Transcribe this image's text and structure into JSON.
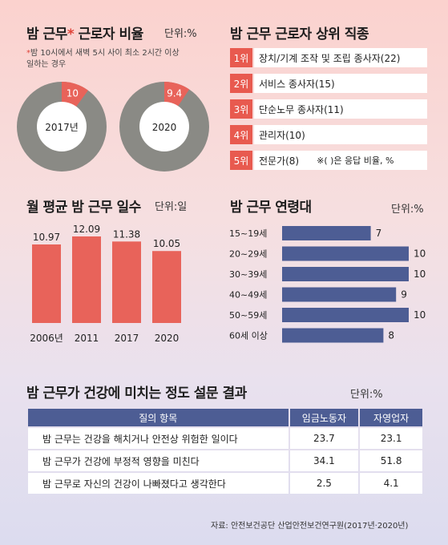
{
  "ratio": {
    "title": "밤 근무",
    "title_star": "*",
    "title_rest": " 근로자 비율",
    "unit": "단위:%",
    "note_star": "*",
    "note_line1": "밤 10시에서 새벽 5시 사이 최소 2시간 이상",
    "note_line2": "일하는 경우",
    "donuts": [
      {
        "year": "2017년",
        "value": 10,
        "label": "10"
      },
      {
        "year": "2020",
        "value": 9.4,
        "label": "9.4"
      }
    ],
    "colors": {
      "accent": "#e8635a",
      "rest": "#8a8a85",
      "inner": "#ffffff"
    }
  },
  "jobs": {
    "title": "밤 근무 근로자 상위 직종",
    "note": "※( )은 응답 비율, %",
    "items": [
      {
        "rank": "1위",
        "text": "장치/기계 조작 및 조립 종사자(22)"
      },
      {
        "rank": "2위",
        "text": "서비스 종사자(15)"
      },
      {
        "rank": "3위",
        "text": "단순노무 종사자(11)"
      },
      {
        "rank": "4위",
        "text": "관리자(10)"
      },
      {
        "rank": "5위",
        "text": "전문가(8)"
      }
    ]
  },
  "chart_data": [
    {
      "type": "bar",
      "title": "월 평균 밤 근무 일수",
      "unit": "단위:일",
      "categories": [
        "2006년",
        "2011",
        "2017",
        "2020"
      ],
      "values": [
        10.97,
        12.09,
        11.38,
        10.05
      ],
      "labels": [
        "10.97",
        "12.09",
        "11.38",
        "10.05"
      ],
      "color": "#e8635a"
    },
    {
      "type": "bar",
      "orientation": "horizontal",
      "title": "밤 근무 연령대",
      "unit": "단위:%",
      "categories": [
        "15~19세",
        "20~29세",
        "30~39세",
        "40~49세",
        "50~59세",
        "60세 이상"
      ],
      "values": [
        7,
        10,
        10,
        9,
        10,
        8
      ],
      "color": "#4d5d94"
    },
    {
      "type": "table",
      "title": "밤 근무가 건강에 미치는 정도 설문 결과",
      "unit": "단위:%",
      "columns": [
        "질의 항목",
        "임금노동자",
        "자영업자"
      ],
      "rows": [
        [
          "밤 근무는 건강을 해치거나 안전상 위험한 일이다",
          "23.7",
          "23.1"
        ],
        [
          "밤 근무가 건강에 부정적 영향을 미친다",
          "34.1",
          "51.8"
        ],
        [
          "밤 근무로 자신의 건강이 나빠졌다고 생각한다",
          "2.5",
          "4.1"
        ]
      ]
    }
  ],
  "source": "자료: 안전보건공단 산업안전보건연구원(2017년·2020년)"
}
